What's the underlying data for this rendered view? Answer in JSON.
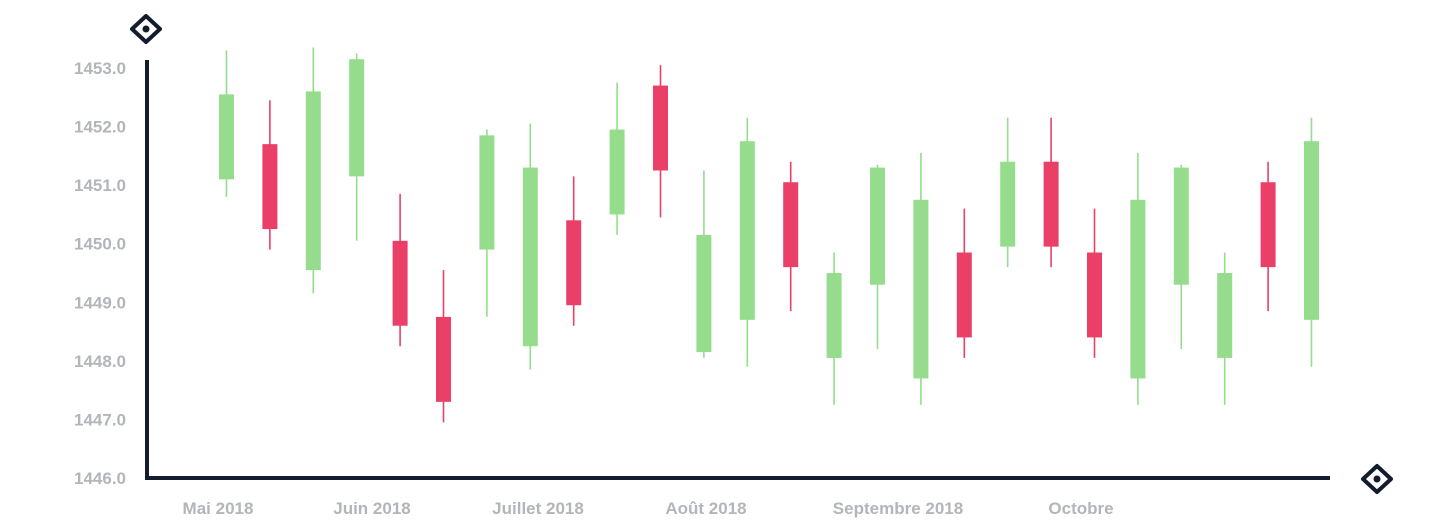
{
  "chart_data": {
    "type": "candlestick",
    "title": "",
    "xlabel": "",
    "ylabel": "",
    "ylim": [
      1446.0,
      1453.0
    ],
    "y_ticks": [
      1446.0,
      1447.0,
      1448.0,
      1449.0,
      1450.0,
      1451.0,
      1452.0,
      1453.0
    ],
    "y_tick_labels": [
      "1446.0",
      "1447.0",
      "1448.0",
      "1449.0",
      "1450.0",
      "1451.0",
      "1452.0",
      "1453.0"
    ],
    "x_tick_labels": [
      "Mai 2018",
      "Juin 2018",
      "Juillet 2018",
      "Août 2018",
      "Septembre 2018",
      "Octobre"
    ],
    "grid": false,
    "colors": {
      "up": "#95dd8d",
      "down": "#ea4068",
      "axis": "#131c2d",
      "tick_label": "#b3b5bb"
    },
    "candles": [
      {
        "open": 1451.1,
        "high": 1453.3,
        "low": 1450.8,
        "close": 1452.55
      },
      {
        "open": 1451.7,
        "high": 1452.45,
        "low": 1449.9,
        "close": 1450.25
      },
      {
        "open": 1449.55,
        "high": 1453.35,
        "low": 1449.15,
        "close": 1452.6
      },
      {
        "open": 1451.15,
        "high": 1453.25,
        "low": 1450.05,
        "close": 1453.15
      },
      {
        "open": 1450.05,
        "high": 1450.85,
        "low": 1448.25,
        "close": 1448.6
      },
      {
        "open": 1448.75,
        "high": 1449.55,
        "low": 1446.95,
        "close": 1447.3
      },
      {
        "open": 1449.9,
        "high": 1451.95,
        "low": 1448.75,
        "close": 1451.85
      },
      {
        "open": 1448.25,
        "high": 1452.05,
        "low": 1447.85,
        "close": 1451.3
      },
      {
        "open": 1450.4,
        "high": 1451.15,
        "low": 1448.6,
        "close": 1448.95
      },
      {
        "open": 1450.5,
        "high": 1452.75,
        "low": 1450.15,
        "close": 1451.95
      },
      {
        "open": 1452.7,
        "high": 1453.05,
        "low": 1450.45,
        "close": 1451.25
      },
      {
        "open": 1448.15,
        "high": 1451.25,
        "low": 1448.05,
        "close": 1450.15
      },
      {
        "open": 1448.7,
        "high": 1452.15,
        "low": 1447.9,
        "close": 1451.75
      },
      {
        "open": 1451.05,
        "high": 1451.4,
        "low": 1448.85,
        "close": 1449.6
      },
      {
        "open": 1448.05,
        "high": 1449.85,
        "low": 1447.25,
        "close": 1449.5
      },
      {
        "open": 1449.3,
        "high": 1451.35,
        "low": 1448.2,
        "close": 1451.3
      },
      {
        "open": 1447.7,
        "high": 1451.55,
        "low": 1447.25,
        "close": 1450.75
      },
      {
        "open": 1449.85,
        "high": 1450.6,
        "low": 1448.05,
        "close": 1448.4
      },
      {
        "open": 1449.95,
        "high": 1452.15,
        "low": 1449.6,
        "close": 1451.4
      },
      {
        "open": 1451.4,
        "high": 1452.15,
        "low": 1449.6,
        "close": 1449.95
      },
      {
        "open": 1449.85,
        "high": 1450.6,
        "low": 1448.05,
        "close": 1448.4
      },
      {
        "open": 1447.7,
        "high": 1451.55,
        "low": 1447.25,
        "close": 1450.75
      },
      {
        "open": 1449.3,
        "high": 1451.35,
        "low": 1448.2,
        "close": 1451.3
      },
      {
        "open": 1448.05,
        "high": 1449.85,
        "low": 1447.25,
        "close": 1449.5
      },
      {
        "open": 1451.05,
        "high": 1451.4,
        "low": 1448.85,
        "close": 1449.6
      },
      {
        "open": 1448.7,
        "high": 1452.15,
        "low": 1447.9,
        "close": 1451.75
      }
    ]
  }
}
